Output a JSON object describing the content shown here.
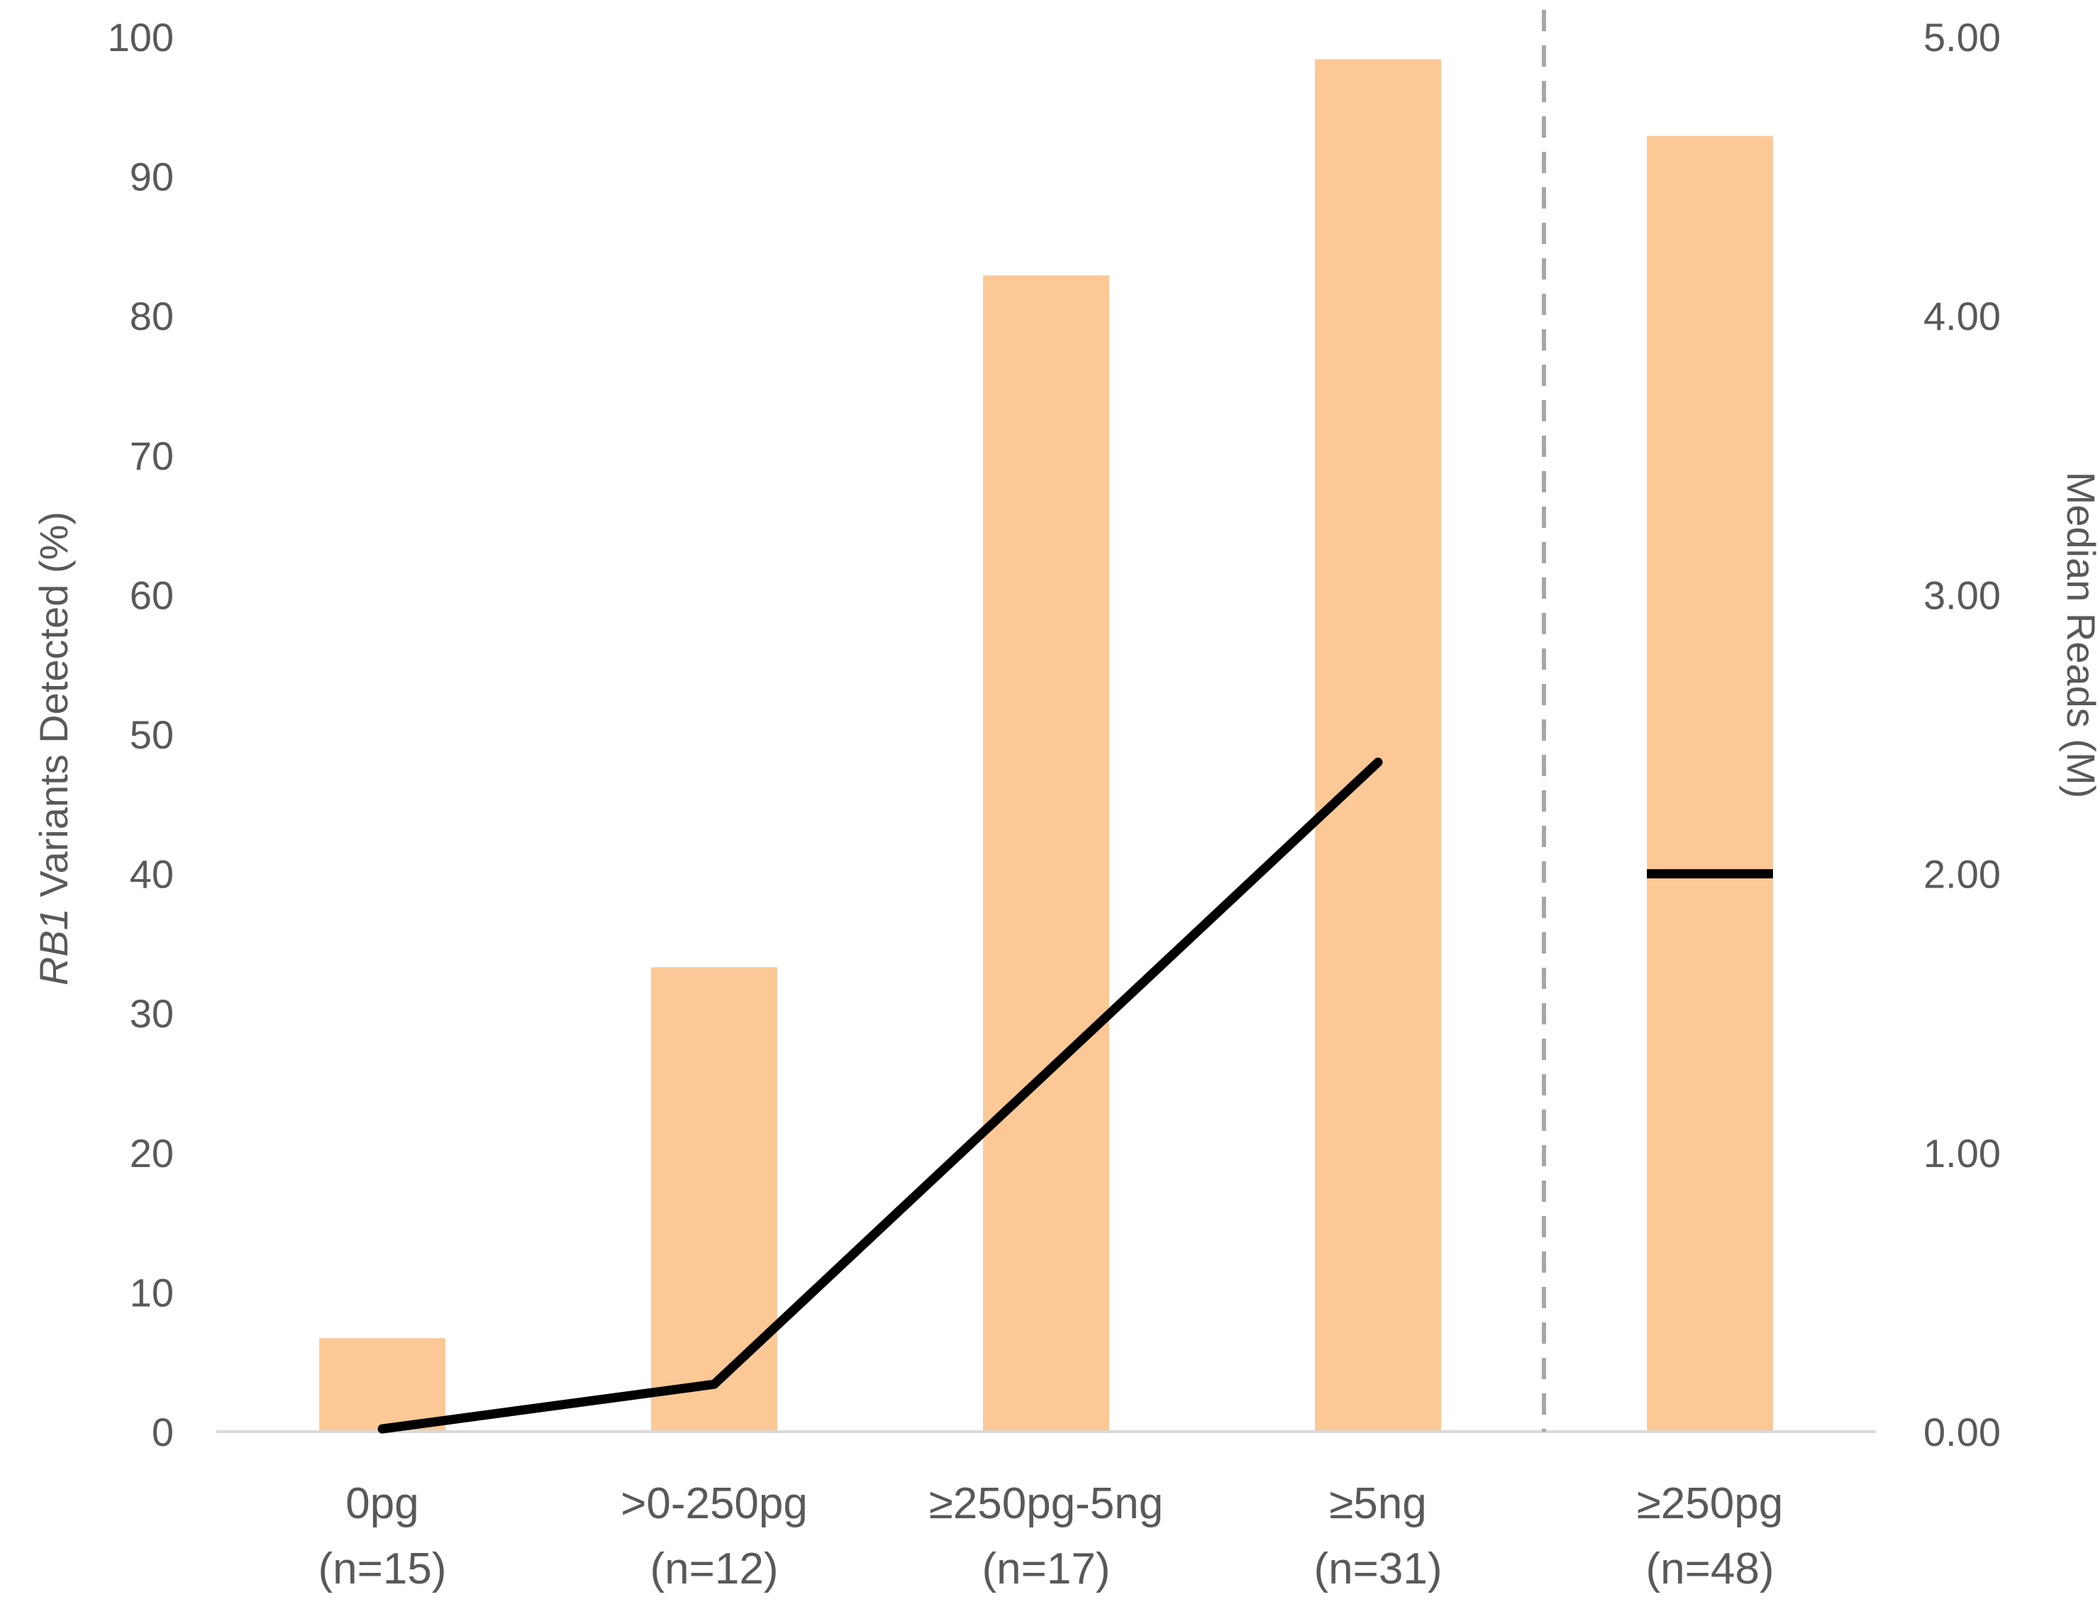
{
  "chart_data": {
    "type": "bar",
    "categories": [
      {
        "line1": "0pg",
        "line2": "(n=15)"
      },
      {
        "line1": ">0-250pg",
        "line2": "(n=12)"
      },
      {
        "line1": "≥250pg-5ng",
        "line2": "(n=17)"
      },
      {
        "line1": "≥5ng",
        "line2": "(n=31)"
      },
      {
        "line1": "≥250pg",
        "line2": "(n=48)"
      }
    ],
    "series": [
      {
        "type": "bar",
        "axis": "left",
        "values": [
          6.7,
          33.3,
          82.9,
          98.4,
          92.9
        ],
        "color": "#fbc896"
      },
      {
        "type": "line",
        "axis": "right",
        "values": [
          0.01,
          0.17,
          null,
          2.4,
          2.0
        ],
        "note_values_index_2_interpolated": false,
        "color": "#000000"
      }
    ],
    "line_points": [
      {
        "category_index": 0,
        "value": 0.01
      },
      {
        "category_index": 1,
        "value": 0.17
      },
      {
        "category_index": 3,
        "value": 2.4
      }
    ],
    "marker_segment": {
      "category_index": 4,
      "value": 2.0
    },
    "ylabel_left": {
      "italic": "RB1",
      "rest": " Variants Detected (%)"
    },
    "ylabel_right": "Median Reads (M)",
    "ylim_left": [
      0,
      100
    ],
    "ylim_right": [
      0,
      5
    ],
    "yticks_left": [
      "0",
      "10",
      "20",
      "30",
      "40",
      "50",
      "60",
      "70",
      "80",
      "90",
      "100"
    ],
    "yticks_right": [
      "0.00",
      "1.00",
      "2.00",
      "3.00",
      "4.00",
      "5.00"
    ],
    "divider": "dashed vertical line between 4th and 5th category",
    "colors": {
      "bar": "#fbc896",
      "line": "#000000",
      "axis": "#d9d9d9",
      "divider": "#a6a6a6",
      "text": "#595959"
    }
  }
}
